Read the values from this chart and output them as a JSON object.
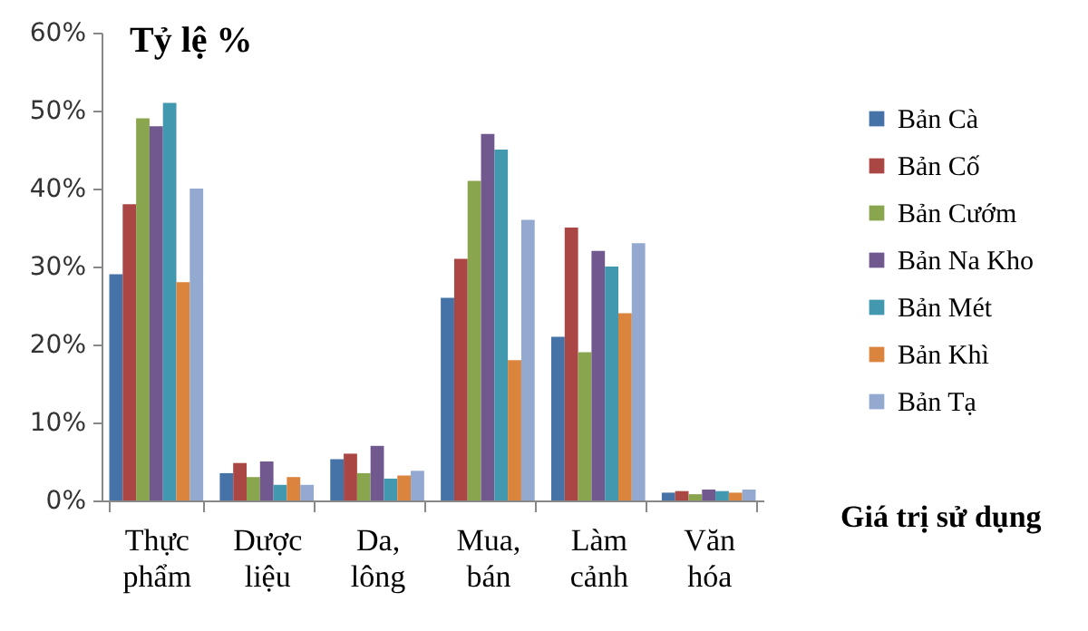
{
  "chart_data": {
    "type": "bar",
    "ylabel": "Tỷ lệ %",
    "xlabel": "Giá trị sử dụng",
    "categories": [
      "Thực phẩm",
      "Dược liệu",
      "Da, lông",
      "Mua, bán",
      "Làm cảnh",
      "Văn hóa"
    ],
    "series": [
      {
        "name": "Bản Cà",
        "color": "#4572a7",
        "values": [
          29,
          3.5,
          5.3,
          26,
          21,
          1
        ]
      },
      {
        "name": "Bản Cố",
        "color": "#aa4643",
        "values": [
          38,
          4.8,
          6,
          31,
          35,
          1.2
        ]
      },
      {
        "name": "Bản Cướm",
        "color": "#89a54e",
        "values": [
          49,
          3,
          3.5,
          41,
          19,
          0.8
        ]
      },
      {
        "name": "Bản Na Kho",
        "color": "#71588f",
        "values": [
          48,
          5,
          7,
          47,
          32,
          1.4
        ]
      },
      {
        "name": "Bản Mét",
        "color": "#4198af",
        "values": [
          51,
          2,
          2.8,
          45,
          30,
          1.2
        ]
      },
      {
        "name": "Bản Khì",
        "color": "#db843d",
        "values": [
          28,
          3,
          3.2,
          18,
          24,
          1
        ]
      },
      {
        "name": "Bản Tạ",
        "color": "#93a9cf",
        "values": [
          40,
          2,
          3.8,
          36,
          33,
          1.4
        ]
      }
    ],
    "ylim": [
      0,
      60
    ],
    "yticks": [
      {
        "value": 0,
        "label": "0%"
      },
      {
        "value": 10,
        "label": "10%"
      },
      {
        "value": 20,
        "label": "20%"
      },
      {
        "value": 30,
        "label": "30%"
      },
      {
        "value": 40,
        "label": "40%"
      },
      {
        "value": 50,
        "label": "50%"
      },
      {
        "value": 60,
        "label": "60%"
      }
    ],
    "grid": false,
    "legend": "right"
  }
}
